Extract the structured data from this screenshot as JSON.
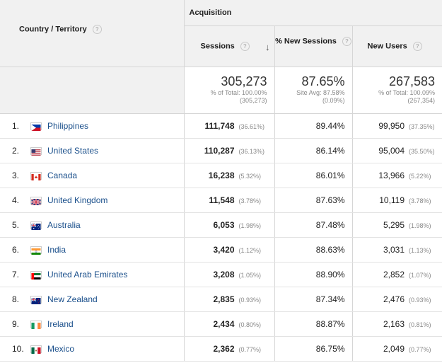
{
  "header": {
    "country_label": "Country / Territory",
    "group_label": "Acquisition",
    "sessions_label": "Sessions",
    "new_sessions_label": "% New Sessions",
    "new_users_label": "New Users",
    "help_glyph": "?",
    "sort_glyph": "↓"
  },
  "totals": {
    "sessions": "305,273",
    "sessions_sub1": "% of Total: 100.00%",
    "sessions_sub2": "(305,273)",
    "new_sessions": "87.65%",
    "new_sessions_sub1": "Site Avg: 87.58%",
    "new_sessions_sub2": "(0.09%)",
    "new_users": "267,583",
    "new_users_sub1": "% of Total: 100.09%",
    "new_users_sub2": "(267,354)"
  },
  "rows": [
    {
      "idx": "1.",
      "country": "Philippines",
      "flag": "ph",
      "sessions": "111,748",
      "sessions_pct": "(36.61%)",
      "new_sessions": "89.44%",
      "new_users": "99,950",
      "new_users_pct": "(37.35%)"
    },
    {
      "idx": "2.",
      "country": "United States",
      "flag": "us",
      "sessions": "110,287",
      "sessions_pct": "(36.13%)",
      "new_sessions": "86.14%",
      "new_users": "95,004",
      "new_users_pct": "(35.50%)"
    },
    {
      "idx": "3.",
      "country": "Canada",
      "flag": "ca",
      "sessions": "16,238",
      "sessions_pct": "(5.32%)",
      "new_sessions": "86.01%",
      "new_users": "13,966",
      "new_users_pct": "(5.22%)"
    },
    {
      "idx": "4.",
      "country": "United Kingdom",
      "flag": "gb",
      "sessions": "11,548",
      "sessions_pct": "(3.78%)",
      "new_sessions": "87.63%",
      "new_users": "10,119",
      "new_users_pct": "(3.78%)"
    },
    {
      "idx": "5.",
      "country": "Australia",
      "flag": "au",
      "sessions": "6,053",
      "sessions_pct": "(1.98%)",
      "new_sessions": "87.48%",
      "new_users": "5,295",
      "new_users_pct": "(1.98%)"
    },
    {
      "idx": "6.",
      "country": "India",
      "flag": "in",
      "sessions": "3,420",
      "sessions_pct": "(1.12%)",
      "new_sessions": "88.63%",
      "new_users": "3,031",
      "new_users_pct": "(1.13%)"
    },
    {
      "idx": "7.",
      "country": "United Arab Emirates",
      "flag": "ae",
      "sessions": "3,208",
      "sessions_pct": "(1.05%)",
      "new_sessions": "88.90%",
      "new_users": "2,852",
      "new_users_pct": "(1.07%)"
    },
    {
      "idx": "8.",
      "country": "New Zealand",
      "flag": "nz",
      "sessions": "2,835",
      "sessions_pct": "(0.93%)",
      "new_sessions": "87.34%",
      "new_users": "2,476",
      "new_users_pct": "(0.93%)"
    },
    {
      "idx": "9.",
      "country": "Ireland",
      "flag": "ie",
      "sessions": "2,434",
      "sessions_pct": "(0.80%)",
      "new_sessions": "88.87%",
      "new_users": "2,163",
      "new_users_pct": "(0.81%)"
    },
    {
      "idx": "10.",
      "country": "Mexico",
      "flag": "mx",
      "sessions": "2,362",
      "sessions_pct": "(0.77%)",
      "new_sessions": "86.75%",
      "new_users": "2,049",
      "new_users_pct": "(0.77%)"
    }
  ]
}
